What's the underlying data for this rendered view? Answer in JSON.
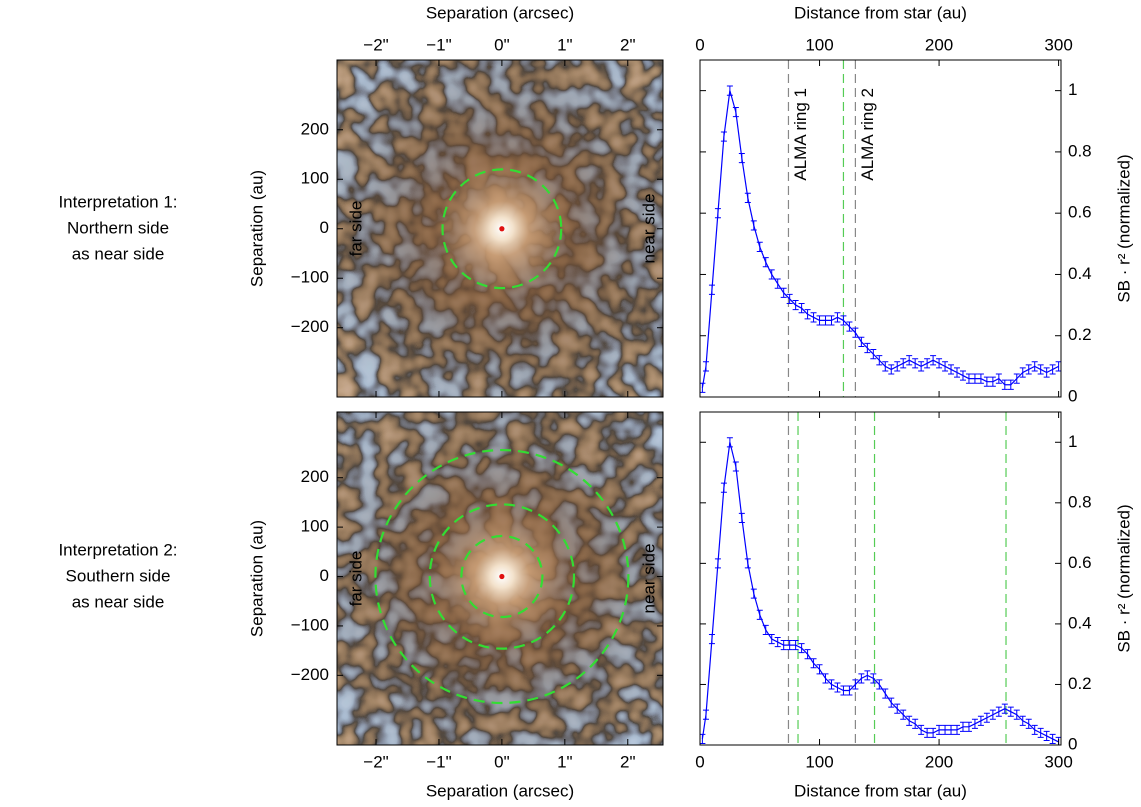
{
  "row_labels": [
    [
      "Interpretation 1:",
      "Northern side",
      "as near side"
    ],
    [
      "Interpretation 2:",
      "Southern side",
      "as near side"
    ]
  ],
  "chart_data": [
    {
      "type": "image",
      "xlabel": "Separation (arcsec)",
      "ylabel": "Separation (au)",
      "xaxis_position": "top",
      "xlim": [
        -2.62,
        2.56
      ],
      "xticks": [
        {
          "value": -2,
          "label": "−2\""
        },
        {
          "value": -1,
          "label": "−1\""
        },
        {
          "value": 0,
          "label": "0\""
        },
        {
          "value": 1,
          "label": "1\""
        },
        {
          "value": 2,
          "label": "2\""
        }
      ],
      "ylim": [
        -340,
        341
      ],
      "yticks": [
        200,
        100,
        0,
        {
          "value": -100,
          "label": "−100"
        },
        {
          "value": -200,
          "label": "−200"
        }
      ],
      "rings_au": [
        120
      ],
      "ring_color": "#33dd33",
      "annotations": [
        "far side",
        "near side"
      ]
    },
    {
      "type": "line",
      "xlabel": "Distance from star (au)",
      "ylabel": "SB · r² (normalized)",
      "xaxis_position": "top",
      "xlim": [
        0,
        302
      ],
      "xticks": [
        0,
        100,
        200,
        300
      ],
      "ylim": [
        0,
        1.1
      ],
      "yticks": [
        0,
        0.2,
        0.4,
        0.6,
        0.8,
        1
      ],
      "x": [
        2,
        5,
        10,
        15,
        20,
        25,
        30,
        35,
        40,
        45,
        50,
        55,
        60,
        65,
        70,
        75,
        80,
        85,
        90,
        95,
        100,
        105,
        110,
        115,
        120,
        125,
        130,
        135,
        140,
        145,
        150,
        155,
        160,
        165,
        170,
        175,
        180,
        185,
        190,
        195,
        200,
        205,
        210,
        215,
        220,
        225,
        230,
        235,
        240,
        245,
        250,
        255,
        260,
        265,
        270,
        275,
        280,
        285,
        290,
        295,
        300
      ],
      "series": [
        {
          "color": "#0000ff",
          "values": [
            0.03,
            0.1,
            0.35,
            0.6,
            0.85,
            1,
            0.93,
            0.78,
            0.65,
            0.56,
            0.49,
            0.44,
            0.4,
            0.37,
            0.34,
            0.32,
            0.3,
            0.29,
            0.27,
            0.26,
            0.25,
            0.25,
            0.25,
            0.26,
            0.25,
            0.23,
            0.21,
            0.18,
            0.16,
            0.14,
            0.12,
            0.1,
            0.09,
            0.1,
            0.11,
            0.12,
            0.11,
            0.1,
            0.11,
            0.12,
            0.11,
            0.1,
            0.09,
            0.08,
            0.07,
            0.06,
            0.06,
            0.06,
            0.05,
            0.05,
            0.06,
            0.04,
            0.04,
            0.06,
            0.08,
            0.09,
            0.1,
            0.09,
            0.08,
            0.09,
            0.1
          ]
        }
      ],
      "error": 0.015,
      "vlines": [
        {
          "x": 74,
          "color": "#888888",
          "label": "ALMA ring 1"
        },
        {
          "x": 120,
          "color": "#55cc55"
        },
        {
          "x": 130,
          "color": "#888888",
          "label": "ALMA ring 2"
        }
      ]
    },
    {
      "type": "image",
      "xlabel": "Separation (arcsec)",
      "ylabel": "Separation (au)",
      "xaxis_position": "bottom",
      "xlim": [
        -2.62,
        2.56
      ],
      "xticks": [
        {
          "value": -2,
          "label": "−2\""
        },
        {
          "value": -1,
          "label": "−1\""
        },
        {
          "value": 0,
          "label": "0\""
        },
        {
          "value": 1,
          "label": "1\""
        },
        {
          "value": 2,
          "label": "2\""
        }
      ],
      "ylim": [
        -341,
        333
      ],
      "yticks": [
        200,
        100,
        0,
        {
          "value": -100,
          "label": "−100"
        },
        {
          "value": -200,
          "label": "−200"
        }
      ],
      "rings_au": [
        82,
        146,
        256
      ],
      "ring_color": "#33dd33",
      "annotations": [
        "far side",
        "near side"
      ]
    },
    {
      "type": "line",
      "xlabel": "Distance from star (au)",
      "ylabel": "SB · r² (normalized)",
      "xaxis_position": "bottom",
      "xlim": [
        0,
        302
      ],
      "xticks": [
        0,
        100,
        200,
        300
      ],
      "ylim": [
        0,
        1.1
      ],
      "yticks": [
        0,
        0.2,
        0.4,
        0.6,
        0.8,
        1
      ],
      "x": [
        2,
        5,
        10,
        15,
        20,
        25,
        30,
        35,
        40,
        45,
        50,
        55,
        60,
        65,
        70,
        75,
        80,
        85,
        90,
        95,
        100,
        105,
        110,
        115,
        120,
        125,
        130,
        135,
        140,
        145,
        150,
        155,
        160,
        165,
        170,
        175,
        180,
        185,
        190,
        195,
        200,
        205,
        210,
        215,
        220,
        225,
        230,
        235,
        240,
        245,
        250,
        255,
        260,
        265,
        270,
        275,
        280,
        285,
        290,
        295,
        300
      ],
      "series": [
        {
          "color": "#0000ff",
          "values": [
            0.02,
            0.1,
            0.35,
            0.6,
            0.85,
            1,
            0.92,
            0.75,
            0.6,
            0.5,
            0.43,
            0.38,
            0.35,
            0.34,
            0.33,
            0.33,
            0.33,
            0.32,
            0.3,
            0.27,
            0.25,
            0.22,
            0.2,
            0.19,
            0.18,
            0.18,
            0.2,
            0.22,
            0.23,
            0.22,
            0.2,
            0.17,
            0.14,
            0.12,
            0.1,
            0.08,
            0.07,
            0.05,
            0.04,
            0.04,
            0.05,
            0.05,
            0.05,
            0.05,
            0.06,
            0.06,
            0.07,
            0.08,
            0.09,
            0.1,
            0.11,
            0.12,
            0.11,
            0.1,
            0.08,
            0.07,
            0.05,
            0.04,
            0.03,
            0.02,
            0.01
          ]
        }
      ],
      "error": 0.015,
      "vlines": [
        {
          "x": 74,
          "color": "#888888"
        },
        {
          "x": 82,
          "color": "#55cc55"
        },
        {
          "x": 130,
          "color": "#888888"
        },
        {
          "x": 146,
          "color": "#55cc55"
        },
        {
          "x": 256,
          "color": "#55cc55"
        }
      ]
    }
  ]
}
